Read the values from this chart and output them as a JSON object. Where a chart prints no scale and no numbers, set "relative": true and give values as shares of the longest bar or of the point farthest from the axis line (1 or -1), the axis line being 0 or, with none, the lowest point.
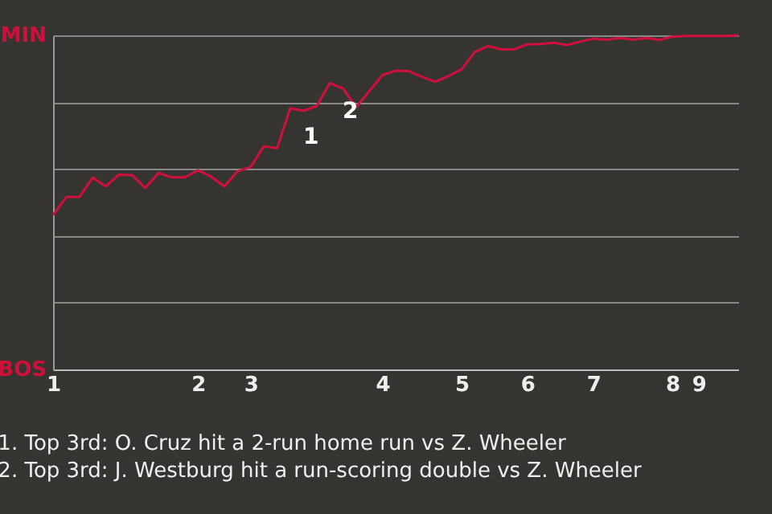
{
  "chart_data": {
    "type": "line",
    "relative": true,
    "categories": [
      "1",
      null,
      null,
      null,
      null,
      null,
      null,
      null,
      null,
      null,
      null,
      "2",
      null,
      null,
      null,
      "3",
      null,
      null,
      null,
      null,
      null,
      null,
      null,
      null,
      null,
      "4",
      null,
      null,
      null,
      null,
      null,
      "5",
      null,
      null,
      null,
      null,
      "6",
      null,
      null,
      null,
      null,
      "7",
      null,
      null,
      null,
      null,
      null,
      "8",
      null,
      "9",
      null,
      null,
      null
    ],
    "series": [
      {
        "color": "#d0103a",
        "values": [
          0.462,
          0.516,
          0.516,
          0.574,
          0.548,
          0.583,
          0.582,
          0.543,
          0.588,
          0.575,
          0.575,
          0.596,
          0.577,
          0.548,
          0.593,
          0.606,
          0.668,
          0.662,
          0.782,
          0.774,
          0.788,
          0.857,
          0.841,
          0.785,
          0.833,
          0.881,
          0.894,
          0.893,
          0.876,
          0.861,
          0.878,
          0.898,
          0.95,
          0.968,
          0.958,
          0.958,
          0.973,
          0.974,
          0.978,
          0.971,
          0.981,
          0.99,
          0.987,
          0.992,
          0.987,
          0.992,
          0.986,
          0.996,
          0.998,
          0.998,
          0.998,
          0.998,
          1
        ]
      }
    ],
    "grid": "y",
    "annotations": [
      "MIN",
      "BOS",
      "1",
      "2",
      "1. Top 3rd: O. Cruz hit a 2-run home run vs Z. Wheeler",
      "2. Top 3rd: J. Westburg hit a run-scoring double vs Z. Wheeler"
    ]
  }
}
